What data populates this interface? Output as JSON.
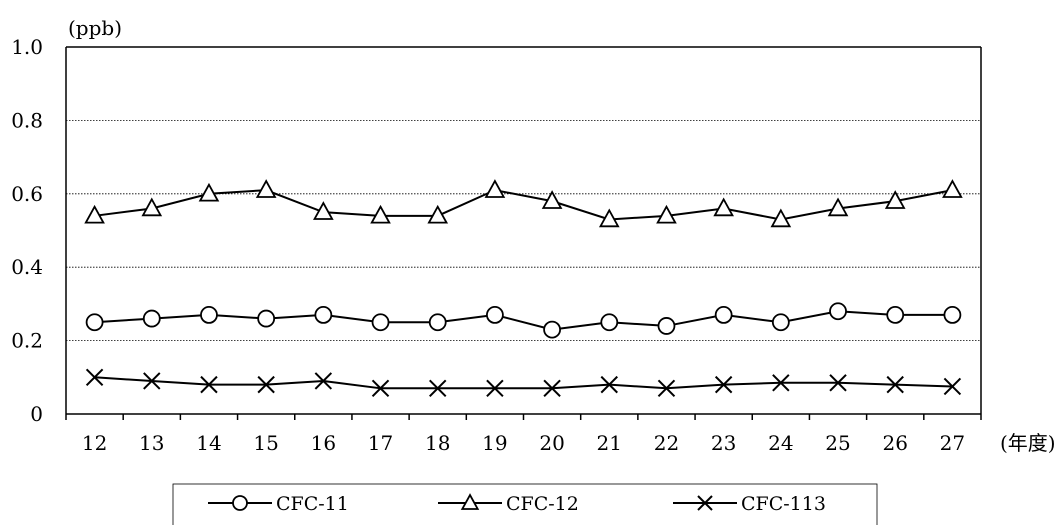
{
  "chart_data": {
    "type": "line",
    "unit_label": "(ppb)",
    "x_unit_label": "(年度)",
    "categories": [
      "12",
      "13",
      "14",
      "15",
      "16",
      "17",
      "18",
      "19",
      "20",
      "21",
      "22",
      "23",
      "24",
      "25",
      "26",
      "27"
    ],
    "ylim": [
      0,
      1.0
    ],
    "yticks": [
      "0",
      "0.2",
      "0.4",
      "0.6",
      "0.8",
      "1.0"
    ],
    "ytick_values": [
      0,
      0.2,
      0.4,
      0.6,
      0.8,
      1.0
    ],
    "grid": true,
    "legend_position": "bottom",
    "series": [
      {
        "name": "CFC-11",
        "marker": "circle",
        "values": [
          0.25,
          0.26,
          0.27,
          0.26,
          0.27,
          0.25,
          0.25,
          0.27,
          0.23,
          0.25,
          0.24,
          0.27,
          0.25,
          0.28,
          0.27,
          0.27
        ]
      },
      {
        "name": "CFC-12",
        "marker": "triangle",
        "values": [
          0.54,
          0.56,
          0.6,
          0.61,
          0.55,
          0.54,
          0.54,
          0.61,
          0.58,
          0.53,
          0.54,
          0.56,
          0.53,
          0.56,
          0.58,
          0.61
        ]
      },
      {
        "name": "CFC-113",
        "marker": "x",
        "values": [
          0.1,
          0.09,
          0.08,
          0.08,
          0.09,
          0.07,
          0.07,
          0.07,
          0.07,
          0.08,
          0.07,
          0.08,
          0.085,
          0.085,
          0.08,
          0.075
        ]
      }
    ]
  }
}
